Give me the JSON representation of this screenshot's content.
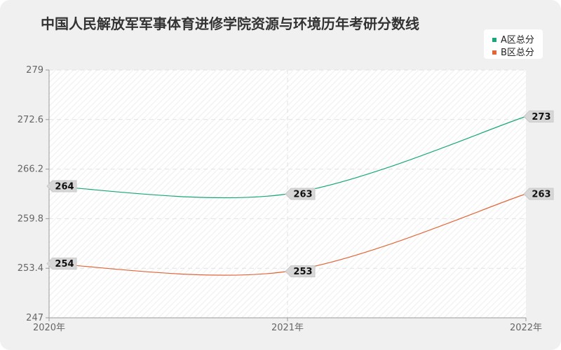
{
  "chart_data": {
    "type": "line",
    "title": "中国人民解放军军事体育进修学院资源与环境历年考研分数线",
    "xlabel": "",
    "ylabel": "",
    "categories": [
      "2020年",
      "2021年",
      "2022年"
    ],
    "ylim": [
      247,
      279
    ],
    "yticks": [
      "279",
      "272.6",
      "266.2",
      "259.8",
      "253.4",
      "247"
    ],
    "grid": true,
    "legend_position": "top-right",
    "series": [
      {
        "name": "A区总分",
        "values": [
          264,
          263,
          273
        ],
        "color": "#1aa67a"
      },
      {
        "name": "B区总分",
        "values": [
          254,
          253,
          263
        ],
        "color": "#e0663a"
      }
    ]
  }
}
